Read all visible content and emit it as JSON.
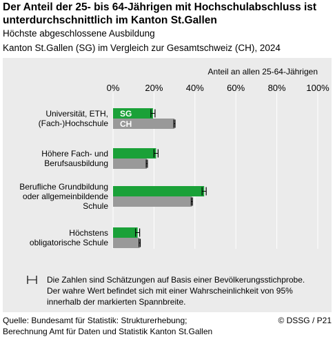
{
  "header": {
    "title": "Der Anteil der 25- bis 64-Jährigen mit Hochschulabschluss ist unterdurchschnittlich im Kanton St.Gallen",
    "subtitle": "Höchste abgeschlossene Ausbildung",
    "subtitle2": "Kanton St.Gallen (SG) im Vergleich zur Gesamtschweiz (CH), 2024"
  },
  "chart_data": {
    "type": "bar",
    "orientation": "horizontal",
    "axis_title": "Anteil an allen 25-64-Jährigen",
    "xlim": [
      0,
      100
    ],
    "tick_labels": [
      "0%",
      "20%",
      "40%",
      "60%",
      "80%",
      "100%"
    ],
    "tick_values": [
      0,
      20,
      40,
      60,
      80,
      100
    ],
    "categories": [
      [
        "Universität, ETH,",
        "(Fach-)Hochschule"
      ],
      [
        "Höhere Fach- und",
        "Berufsausbildung"
      ],
      [
        "Berufliche Grundbildung",
        "oder allgemeinbildende",
        "Schule"
      ],
      [
        "Höchstens",
        "obligatorische Schule"
      ]
    ],
    "series": [
      {
        "name": "SG",
        "color": "#1aa138",
        "values": [
          19.5,
          21,
          44.5,
          12
        ],
        "ci_low": [
          18.5,
          20,
          43.5,
          11
        ],
        "ci_high": [
          20.5,
          22,
          45.5,
          13
        ]
      },
      {
        "name": "CH",
        "color": "#999999",
        "values": [
          30,
          16.5,
          38.5,
          13
        ],
        "ci_low": [
          29.7,
          16.2,
          38.2,
          12.7
        ],
        "ci_high": [
          30.3,
          16.8,
          38.8,
          13.3
        ]
      }
    ],
    "grid": true,
    "note": [
      "Die Zahlen sind Schätzungen auf Basis einer Bevölkerungsstichprobe.",
      "Der wahre Wert befindet sich mit einer Wahrscheinlichkeit von 95%",
      "innerhalb der markierten Spannbreite."
    ]
  },
  "footer": {
    "source_line1": "Quelle: Bundesamt für Statistik: Strukturerhebung;",
    "source_line2": "Berechnung Amt für Daten und Statistik Kanton St.Gallen",
    "copyright": "© DSSG / P21"
  }
}
